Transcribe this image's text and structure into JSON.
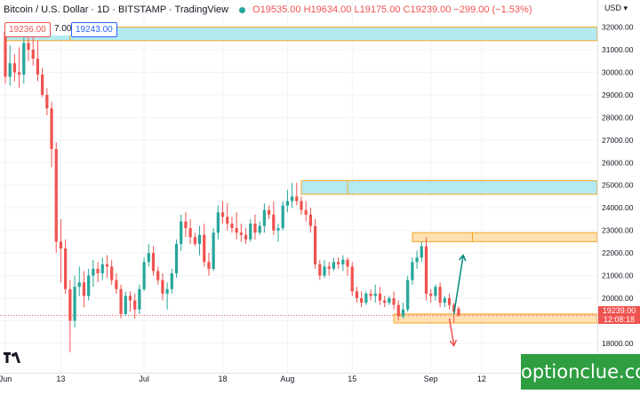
{
  "header": {
    "symbol": "Bitcoin / U.S. Dollar · 1D · BITSTAMP · TradingView",
    "open": "O19535.00",
    "high": "H19634.00",
    "low": "L19175.00",
    "close": "C19239.00",
    "change": "−299.00 (−1.53%)"
  },
  "quote": {
    "bid": "19236.00",
    "spread": "7.00",
    "ask": "19243.00"
  },
  "axis_currency": "USD",
  "last_price": {
    "value": "19239.00",
    "countdown": "12:08:18"
  },
  "watermark": "optionclue.com",
  "colors": {
    "up": "#26a69a",
    "down": "#ef5350",
    "zone_fill": "#b2ebf2",
    "zone_border": "#f5a623",
    "zone_fill_light": "#ffe0b2",
    "arrow_up": "#00897b",
    "arrow_down": "#ef5350"
  },
  "chart_data": {
    "type": "candlestick",
    "y_ticks": [
      "32000.00",
      "31000.00",
      "30000.00",
      "29000.00",
      "28000.00",
      "27000.00",
      "26000.00",
      "25000.00",
      "24000.00",
      "23000.00",
      "22000.00",
      "21000.00",
      "20000.00",
      "19000.00",
      "18000.00"
    ],
    "ylim": [
      16700,
      33200
    ],
    "x_tick_labels": [
      {
        "label": "Jun",
        "day": 0
      },
      {
        "label": "13",
        "day": 12
      },
      {
        "label": "Jul",
        "day": 30
      },
      {
        "label": "18",
        "day": 47
      },
      {
        "label": "Aug",
        "day": 61
      },
      {
        "label": "15",
        "day": 75
      },
      {
        "label": "Sep",
        "day": 92
      },
      {
        "label": "12",
        "day": 103
      }
    ],
    "days_visible": [
      0,
      128
    ],
    "candles": [
      [
        31800,
        31950,
        29500,
        29800
      ],
      [
        29800,
        31200,
        29400,
        30400
      ],
      [
        30400,
        30800,
        29600,
        30000
      ],
      [
        30000,
        31100,
        29300,
        29900
      ],
      [
        29900,
        31600,
        29500,
        31300
      ],
      [
        31300,
        31700,
        30500,
        31000
      ],
      [
        31000,
        31900,
        30300,
        30600
      ],
      [
        30600,
        31400,
        29600,
        29900
      ],
      [
        29900,
        30200,
        28900,
        29000
      ],
      [
        29000,
        29300,
        28100,
        28400
      ],
      [
        28400,
        28700,
        25800,
        26600
      ],
      [
        26600,
        26900,
        22000,
        22500
      ],
      [
        22500,
        23500,
        20700,
        22200
      ],
      [
        22200,
        22600,
        20200,
        20400
      ],
      [
        20400,
        20800,
        17600,
        19000
      ],
      [
        19000,
        21000,
        18700,
        20500
      ],
      [
        20500,
        21400,
        20100,
        20700
      ],
      [
        20700,
        21200,
        19600,
        20100
      ],
      [
        20100,
        21300,
        19900,
        21000
      ],
      [
        21000,
        21700,
        20500,
        21300
      ],
      [
        21300,
        21600,
        20700,
        21100
      ],
      [
        21100,
        21800,
        20800,
        21500
      ],
      [
        21500,
        21900,
        20900,
        21400
      ],
      [
        21400,
        21700,
        20600,
        20800
      ],
      [
        20800,
        21100,
        20200,
        20400
      ],
      [
        20400,
        20600,
        19100,
        19300
      ],
      [
        19300,
        20300,
        19200,
        20100
      ],
      [
        20100,
        20300,
        19400,
        19900
      ],
      [
        19900,
        20200,
        19100,
        19500
      ],
      [
        19500,
        20600,
        19300,
        20400
      ],
      [
        20400,
        21800,
        20300,
        21600
      ],
      [
        21600,
        22400,
        21400,
        22000
      ],
      [
        22000,
        22300,
        21000,
        21200
      ],
      [
        21200,
        21400,
        20600,
        20800
      ],
      [
        20800,
        21100,
        19900,
        20200
      ],
      [
        20200,
        20700,
        19500,
        20400
      ],
      [
        20400,
        21300,
        20200,
        21100
      ],
      [
        21100,
        22600,
        20900,
        22400
      ],
      [
        22400,
        23700,
        22100,
        23400
      ],
      [
        23400,
        23800,
        22700,
        23100
      ],
      [
        23100,
        23500,
        22400,
        22700
      ],
      [
        22700,
        22900,
        22300,
        22400
      ],
      [
        22400,
        23200,
        21900,
        22800
      ],
      [
        22800,
        23300,
        21400,
        21600
      ],
      [
        21600,
        22000,
        21000,
        21300
      ],
      [
        21300,
        23100,
        21200,
        22900
      ],
      [
        22900,
        24100,
        22600,
        23800
      ],
      [
        23800,
        24300,
        23300,
        23600
      ],
      [
        23600,
        24200,
        23000,
        23300
      ],
      [
        23300,
        23600,
        22900,
        23100
      ],
      [
        23100,
        23800,
        22600,
        22900
      ],
      [
        22900,
        23300,
        22500,
        22800
      ],
      [
        22800,
        23100,
        22400,
        22600
      ],
      [
        22600,
        23500,
        22500,
        23300
      ],
      [
        23300,
        23700,
        22600,
        22900
      ],
      [
        22900,
        23400,
        22800,
        23200
      ],
      [
        23200,
        24200,
        22900,
        23900
      ],
      [
        23900,
        24100,
        23500,
        23700
      ],
      [
        23700,
        24300,
        22800,
        23000
      ],
      [
        23000,
        23300,
        22500,
        23100
      ],
      [
        23100,
        24300,
        23000,
        24100
      ],
      [
        24100,
        24800,
        23800,
        24300
      ],
      [
        24300,
        25100,
        24000,
        24500
      ],
      [
        24500,
        25100,
        24100,
        24300
      ],
      [
        24300,
        24500,
        23700,
        23900
      ],
      [
        23900,
        24300,
        23400,
        23700
      ],
      [
        23700,
        24000,
        22900,
        23200
      ],
      [
        23200,
        23500,
        21300,
        21500
      ],
      [
        21500,
        21700,
        20800,
        21000
      ],
      [
        21000,
        21700,
        20900,
        21400
      ],
      [
        21400,
        21600,
        21000,
        21300
      ],
      [
        21300,
        21800,
        21200,
        21600
      ],
      [
        21600,
        21800,
        21300,
        21500
      ],
      [
        21500,
        21900,
        21200,
        21700
      ],
      [
        21700,
        21800,
        21000,
        21400
      ],
      [
        21400,
        21600,
        20100,
        20300
      ],
      [
        20300,
        20500,
        19800,
        20000
      ],
      [
        20000,
        20300,
        19600,
        19800
      ],
      [
        19800,
        20300,
        19700,
        20200
      ],
      [
        20200,
        20400,
        19900,
        20100
      ],
      [
        20100,
        20600,
        19800,
        20200
      ],
      [
        20200,
        20500,
        19700,
        19900
      ],
      [
        19900,
        20100,
        19600,
        19800
      ],
      [
        19800,
        20100,
        19700,
        20000
      ],
      [
        20000,
        20300,
        19500,
        19700
      ],
      [
        19700,
        19900,
        19000,
        19200
      ],
      [
        19200,
        19800,
        19100,
        19500
      ],
      [
        19500,
        21000,
        19400,
        20800
      ],
      [
        20800,
        21800,
        20600,
        21600
      ],
      [
        21600,
        22100,
        21300,
        21800
      ],
      [
        21800,
        22500,
        21600,
        22300
      ],
      [
        22300,
        22700,
        19900,
        20200
      ],
      [
        20200,
        20400,
        19800,
        20100
      ],
      [
        20100,
        20600,
        19900,
        20500
      ],
      [
        20500,
        20700,
        19600,
        19800
      ],
      [
        19800,
        20100,
        19600,
        20000
      ],
      [
        20000,
        20200,
        19500,
        19700
      ],
      [
        19700,
        19800,
        18900,
        19400
      ],
      [
        19535,
        19634,
        19175,
        19239
      ]
    ],
    "zones": [
      {
        "y_low": 31400,
        "y_high": 32000,
        "x_start_day": 0,
        "x_end_day": 128,
        "divider_day": 14,
        "style": "blue"
      },
      {
        "y_low": 24600,
        "y_high": 25200,
        "x_start_day": 64,
        "x_end_day": 128,
        "divider_day": 74,
        "style": "blue"
      },
      {
        "y_low": 22500,
        "y_high": 22900,
        "x_start_day": 88,
        "x_end_day": 128,
        "divider_day": 101,
        "style": "orange"
      },
      {
        "y_low": 18900,
        "y_high": 19300,
        "x_start_day": 84,
        "x_end_day": 128,
        "style": "orange"
      }
    ],
    "projections": [
      {
        "from_day": 97,
        "from_price": 19300,
        "to_day": 99,
        "to_price": 21900,
        "direction": "up"
      },
      {
        "from_day": 96,
        "from_price": 19100,
        "to_day": 97,
        "to_price": 17900,
        "direction": "down"
      }
    ],
    "last_price_line": 19239
  }
}
